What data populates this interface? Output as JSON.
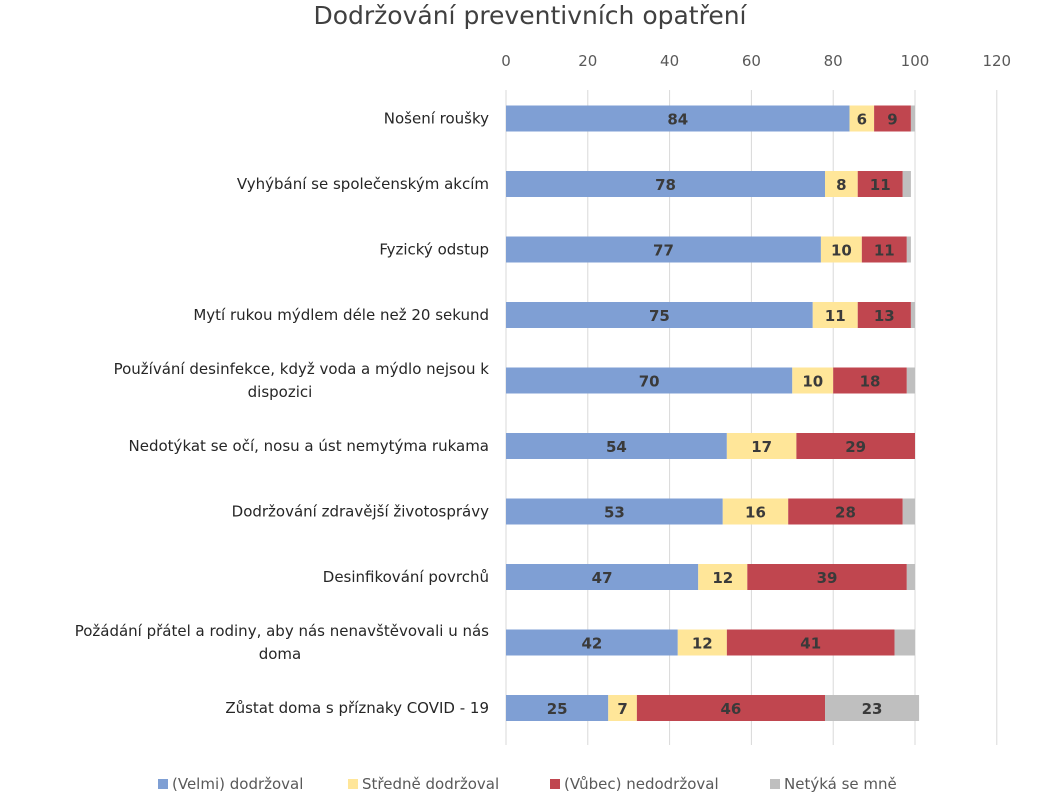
{
  "chart_data": {
    "type": "bar",
    "orientation": "horizontal",
    "stacked": true,
    "title": "Dodržování preventivních opatření",
    "xlim": [
      0,
      120
    ],
    "xticks": [
      "0",
      "20",
      "40",
      "60",
      "80",
      "100",
      "120"
    ],
    "grid": "vertical",
    "legend_position": "bottom",
    "categories": [
      [
        "Nošení roušky"
      ],
      [
        "Vyhýbání se společenským akcím"
      ],
      [
        "Fyzický odstup"
      ],
      [
        "Mytí rukou mýdlem déle než 20 sekund"
      ],
      [
        "Používání desinfekce, když voda  a mýdlo nejsou k",
        "dispozici"
      ],
      [
        "Nedotýkat se očí, nosu a úst nemytýma rukama"
      ],
      [
        "Dodržování zdravější životosprávy"
      ],
      [
        "Desinfikování povrchů"
      ],
      [
        "Požádání přátel a rodiny, aby nás nenavštěvovali u nás",
        "doma"
      ],
      [
        "Zůstat doma s příznaky COVID - 19"
      ]
    ],
    "series": [
      {
        "name": "(Velmi) dodržoval",
        "color": "#7f9fd4",
        "values": [
          84,
          78,
          77,
          75,
          70,
          54,
          53,
          47,
          42,
          25
        ]
      },
      {
        "name": "Středně dodržoval",
        "color": "#ffe699",
        "values": [
          6,
          8,
          10,
          11,
          10,
          17,
          16,
          12,
          12,
          7
        ]
      },
      {
        "name": "(Vůbec) nedodržoval",
        "color": "#c0464f",
        "values": [
          9,
          11,
          11,
          13,
          18,
          29,
          28,
          39,
          41,
          46
        ]
      },
      {
        "name": "Netýká se mně",
        "color": "#bfbfbf",
        "values": [
          1,
          2,
          1,
          1,
          2,
          0,
          3,
          2,
          5,
          23
        ]
      }
    ],
    "data_labels": [
      [
        "84",
        "6",
        "9",
        ""
      ],
      [
        "78",
        "8",
        "11",
        ""
      ],
      [
        "77",
        "10",
        "11",
        ""
      ],
      [
        "75",
        "11",
        "13",
        ""
      ],
      [
        "70",
        "10",
        "18",
        ""
      ],
      [
        "54",
        "17",
        "29",
        ""
      ],
      [
        "53",
        "16",
        "28",
        ""
      ],
      [
        "47",
        "12",
        "39",
        ""
      ],
      [
        "42",
        "12",
        "41",
        ""
      ],
      [
        "25",
        "7",
        "46",
        "23"
      ]
    ]
  }
}
